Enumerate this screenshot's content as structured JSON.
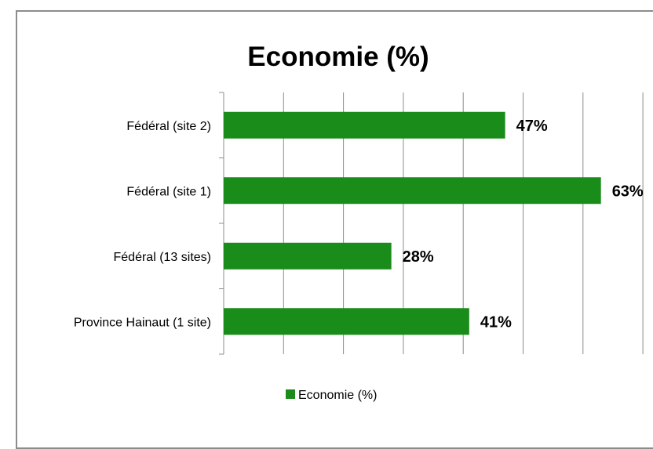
{
  "chart_data": {
    "type": "bar",
    "orientation": "horizontal",
    "title": "Economie (%)",
    "categories": [
      "Fédéral (site 2)",
      "Fédéral (site 1)",
      "Fédéral (13 sites)",
      "Province Hainaut (1 site)"
    ],
    "series": [
      {
        "name": "Economie (%)",
        "values": [
          47,
          63,
          28,
          41
        ],
        "labels": [
          "47%",
          "63%",
          "28%",
          "41%"
        ],
        "color": "#1a8c1a"
      }
    ],
    "xlim": [
      0,
      70
    ],
    "grid": true,
    "legend": "bottom"
  }
}
